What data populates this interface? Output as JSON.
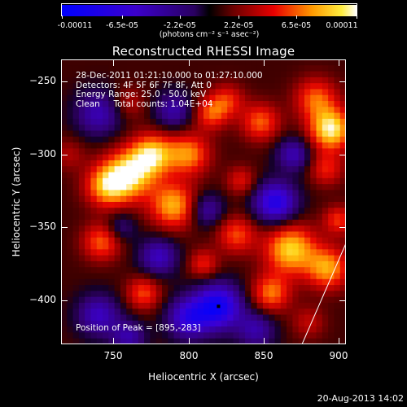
{
  "colorbar": {
    "ticks": [
      "-0.00011",
      "-6.5e-05",
      "-2.2e-05",
      "2.2e-05",
      "6.5e-05",
      "0.00011"
    ],
    "units": "(photons cm⁻² s⁻¹ asec⁻²)",
    "range": [
      -0.00011,
      0.00011
    ]
  },
  "chart_data": {
    "type": "heatmap",
    "title": "Reconstructed RHESSI Image",
    "xlabel": "Heliocentric X (arcsec)",
    "ylabel": "Heliocentric Y (arcsec)",
    "xlim": [
      715,
      905
    ],
    "ylim": [
      -430,
      -235
    ],
    "xticks": [
      750,
      800,
      850,
      900
    ],
    "yticks": [
      -250,
      -300,
      -350,
      -400
    ],
    "xtick_labels": [
      "750",
      "800",
      "850",
      "900"
    ],
    "ytick_labels": [
      "−250",
      "−300",
      "−350",
      "−400"
    ],
    "peak": [
      895,
      -283
    ],
    "minimum_marker": [
      820,
      -404
    ],
    "annotations": [
      "28-Dec-2011 01:21:10.000 to 01:27:10.000",
      "Detectors: 4F 5F 6F 7F 8F, Att 0",
      "Energy Range: 25.0 - 50.0 keV",
      "Clean     Total counts: 1.04E+04",
      "Position of Peak = [895,-283]"
    ]
  },
  "footer": {
    "date": "20-Aug-2013 14:02"
  }
}
